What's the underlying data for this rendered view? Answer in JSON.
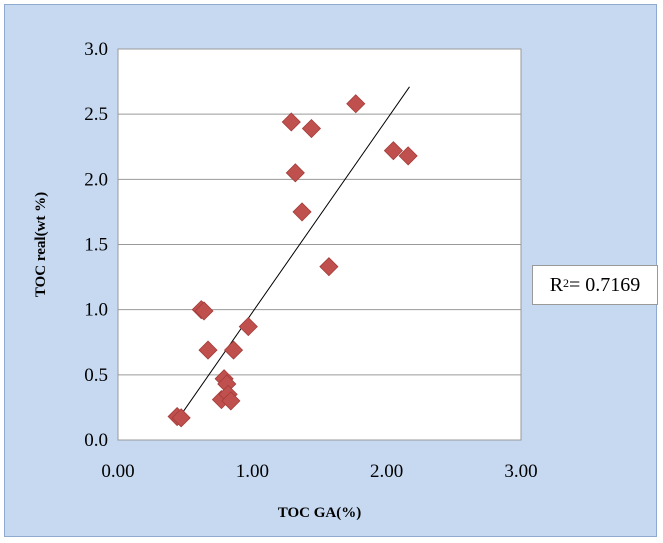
{
  "chart_data": {
    "type": "scatter",
    "xlabel": "TOC GA(%)",
    "ylabel": "TOC  real(wt %)",
    "xlim": [
      0,
      3
    ],
    "ylim": [
      0,
      3
    ],
    "xticks": [
      "0.00",
      "1.00",
      "2.00",
      "3.00"
    ],
    "yticks": [
      "0.0",
      "0.5",
      "1.0",
      "1.5",
      "2.0",
      "2.5",
      "3.0"
    ],
    "grid": "horizontal",
    "marker": "diamond",
    "marker_color": "#c0504d",
    "points": [
      {
        "x": 0.44,
        "y": 0.18
      },
      {
        "x": 0.47,
        "y": 0.17
      },
      {
        "x": 0.62,
        "y": 1.0
      },
      {
        "x": 0.64,
        "y": 0.99
      },
      {
        "x": 0.67,
        "y": 0.69
      },
      {
        "x": 0.77,
        "y": 0.31
      },
      {
        "x": 0.79,
        "y": 0.47
      },
      {
        "x": 0.81,
        "y": 0.43
      },
      {
        "x": 0.82,
        "y": 0.35
      },
      {
        "x": 0.84,
        "y": 0.3
      },
      {
        "x": 0.86,
        "y": 0.69
      },
      {
        "x": 0.97,
        "y": 0.87
      },
      {
        "x": 1.29,
        "y": 2.44
      },
      {
        "x": 1.32,
        "y": 2.05
      },
      {
        "x": 1.37,
        "y": 1.75
      },
      {
        "x": 1.44,
        "y": 2.39
      },
      {
        "x": 1.57,
        "y": 1.33
      },
      {
        "x": 1.77,
        "y": 2.58
      },
      {
        "x": 2.05,
        "y": 2.22
      },
      {
        "x": 2.16,
        "y": 2.18
      }
    ],
    "trendline": {
      "x": [
        0.46,
        2.17
      ],
      "y": [
        0.18,
        2.71
      ],
      "color": "#000000"
    },
    "r_squared": {
      "prefix": "R",
      "sup": "2",
      "suffix": " = 0.7169"
    }
  }
}
